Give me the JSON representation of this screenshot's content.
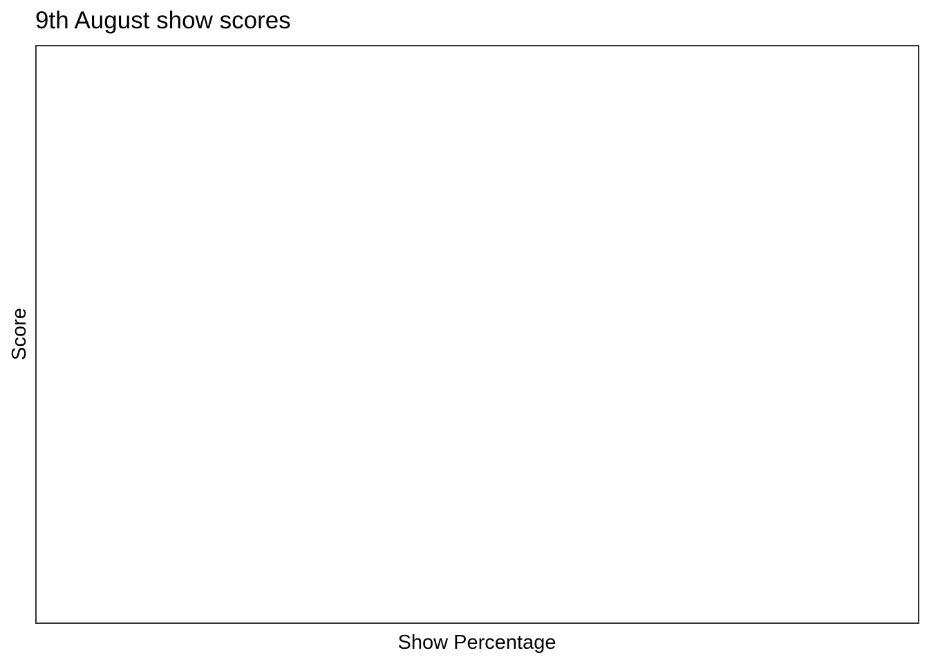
{
  "chart_data": {
    "type": "scatter",
    "title": "9th August show scores",
    "xlabel": "Show Percentage",
    "ylabel": "Score",
    "series": [],
    "grid": false,
    "legend": "none",
    "colors": {
      "background": "#ffffff",
      "panel_border": "#333333",
      "text": "#000000"
    }
  }
}
